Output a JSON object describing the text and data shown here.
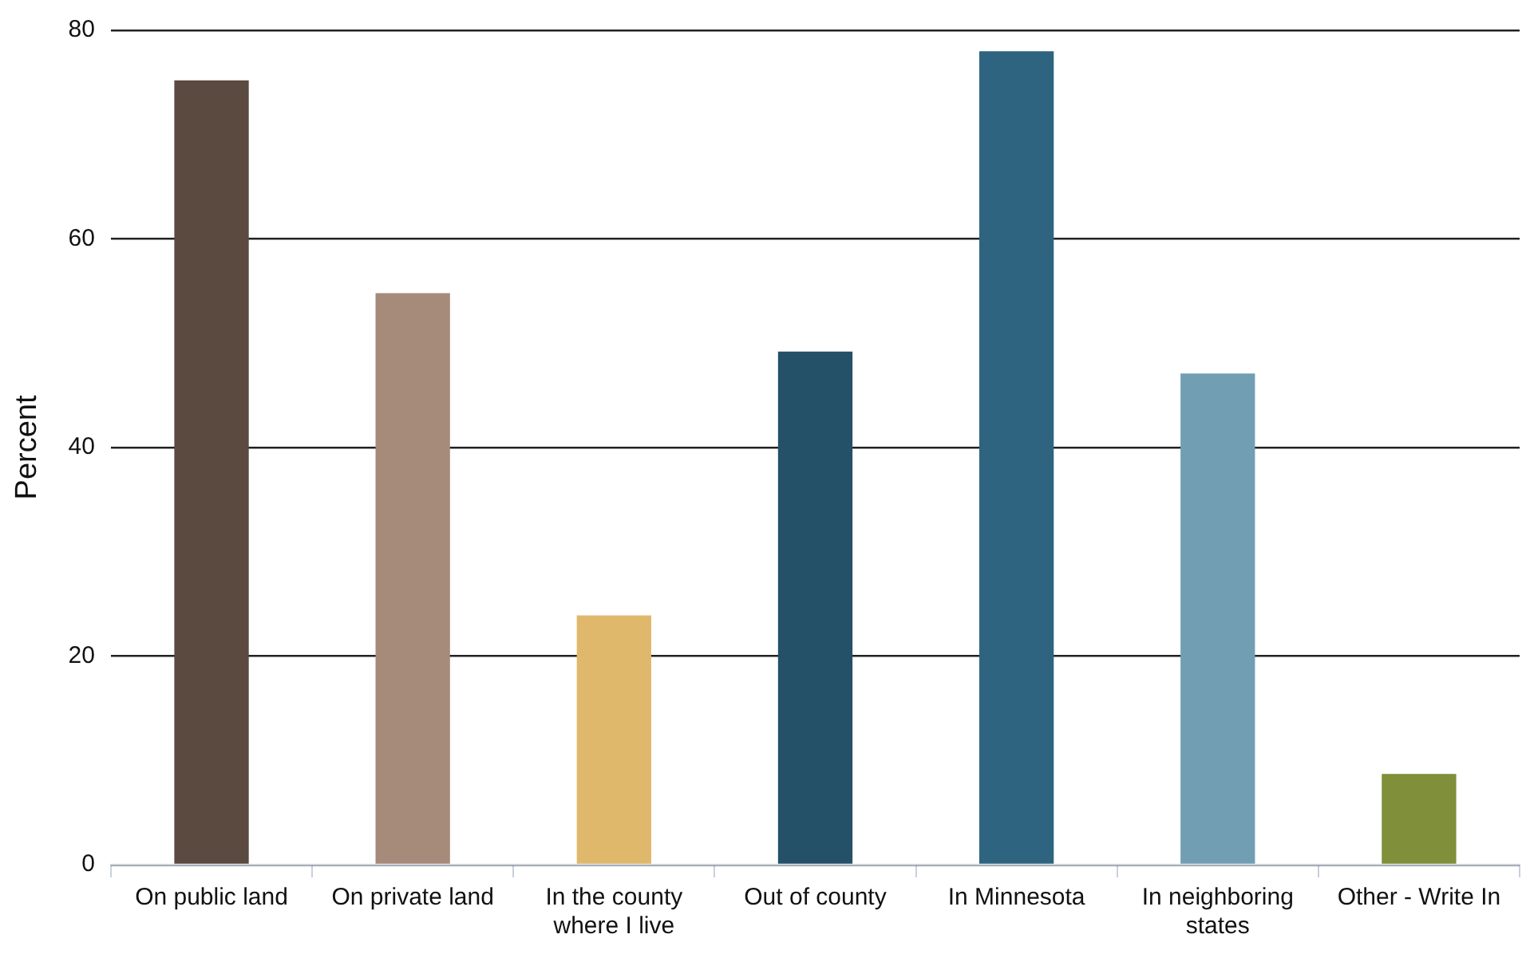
{
  "chart_data": {
    "type": "bar",
    "ylabel": "Percent",
    "categories": [
      "On public land",
      "On private land",
      "In the county where I live",
      "Out of county",
      "In Minnesota",
      "In neighboring states",
      "Other - Write In"
    ],
    "values": [
      75.2,
      54.8,
      23.9,
      49.2,
      78.0,
      47.1,
      8.7
    ],
    "colors": [
      "#5a4a3f",
      "#a68a7a",
      "#e0b86c",
      "#245068",
      "#2e6480",
      "#729eb4",
      "#7f8f3a"
    ],
    "ylim": [
      0,
      80
    ],
    "yticks": [
      0,
      20,
      40,
      60,
      80
    ],
    "grid": "y",
    "legend": false
  }
}
